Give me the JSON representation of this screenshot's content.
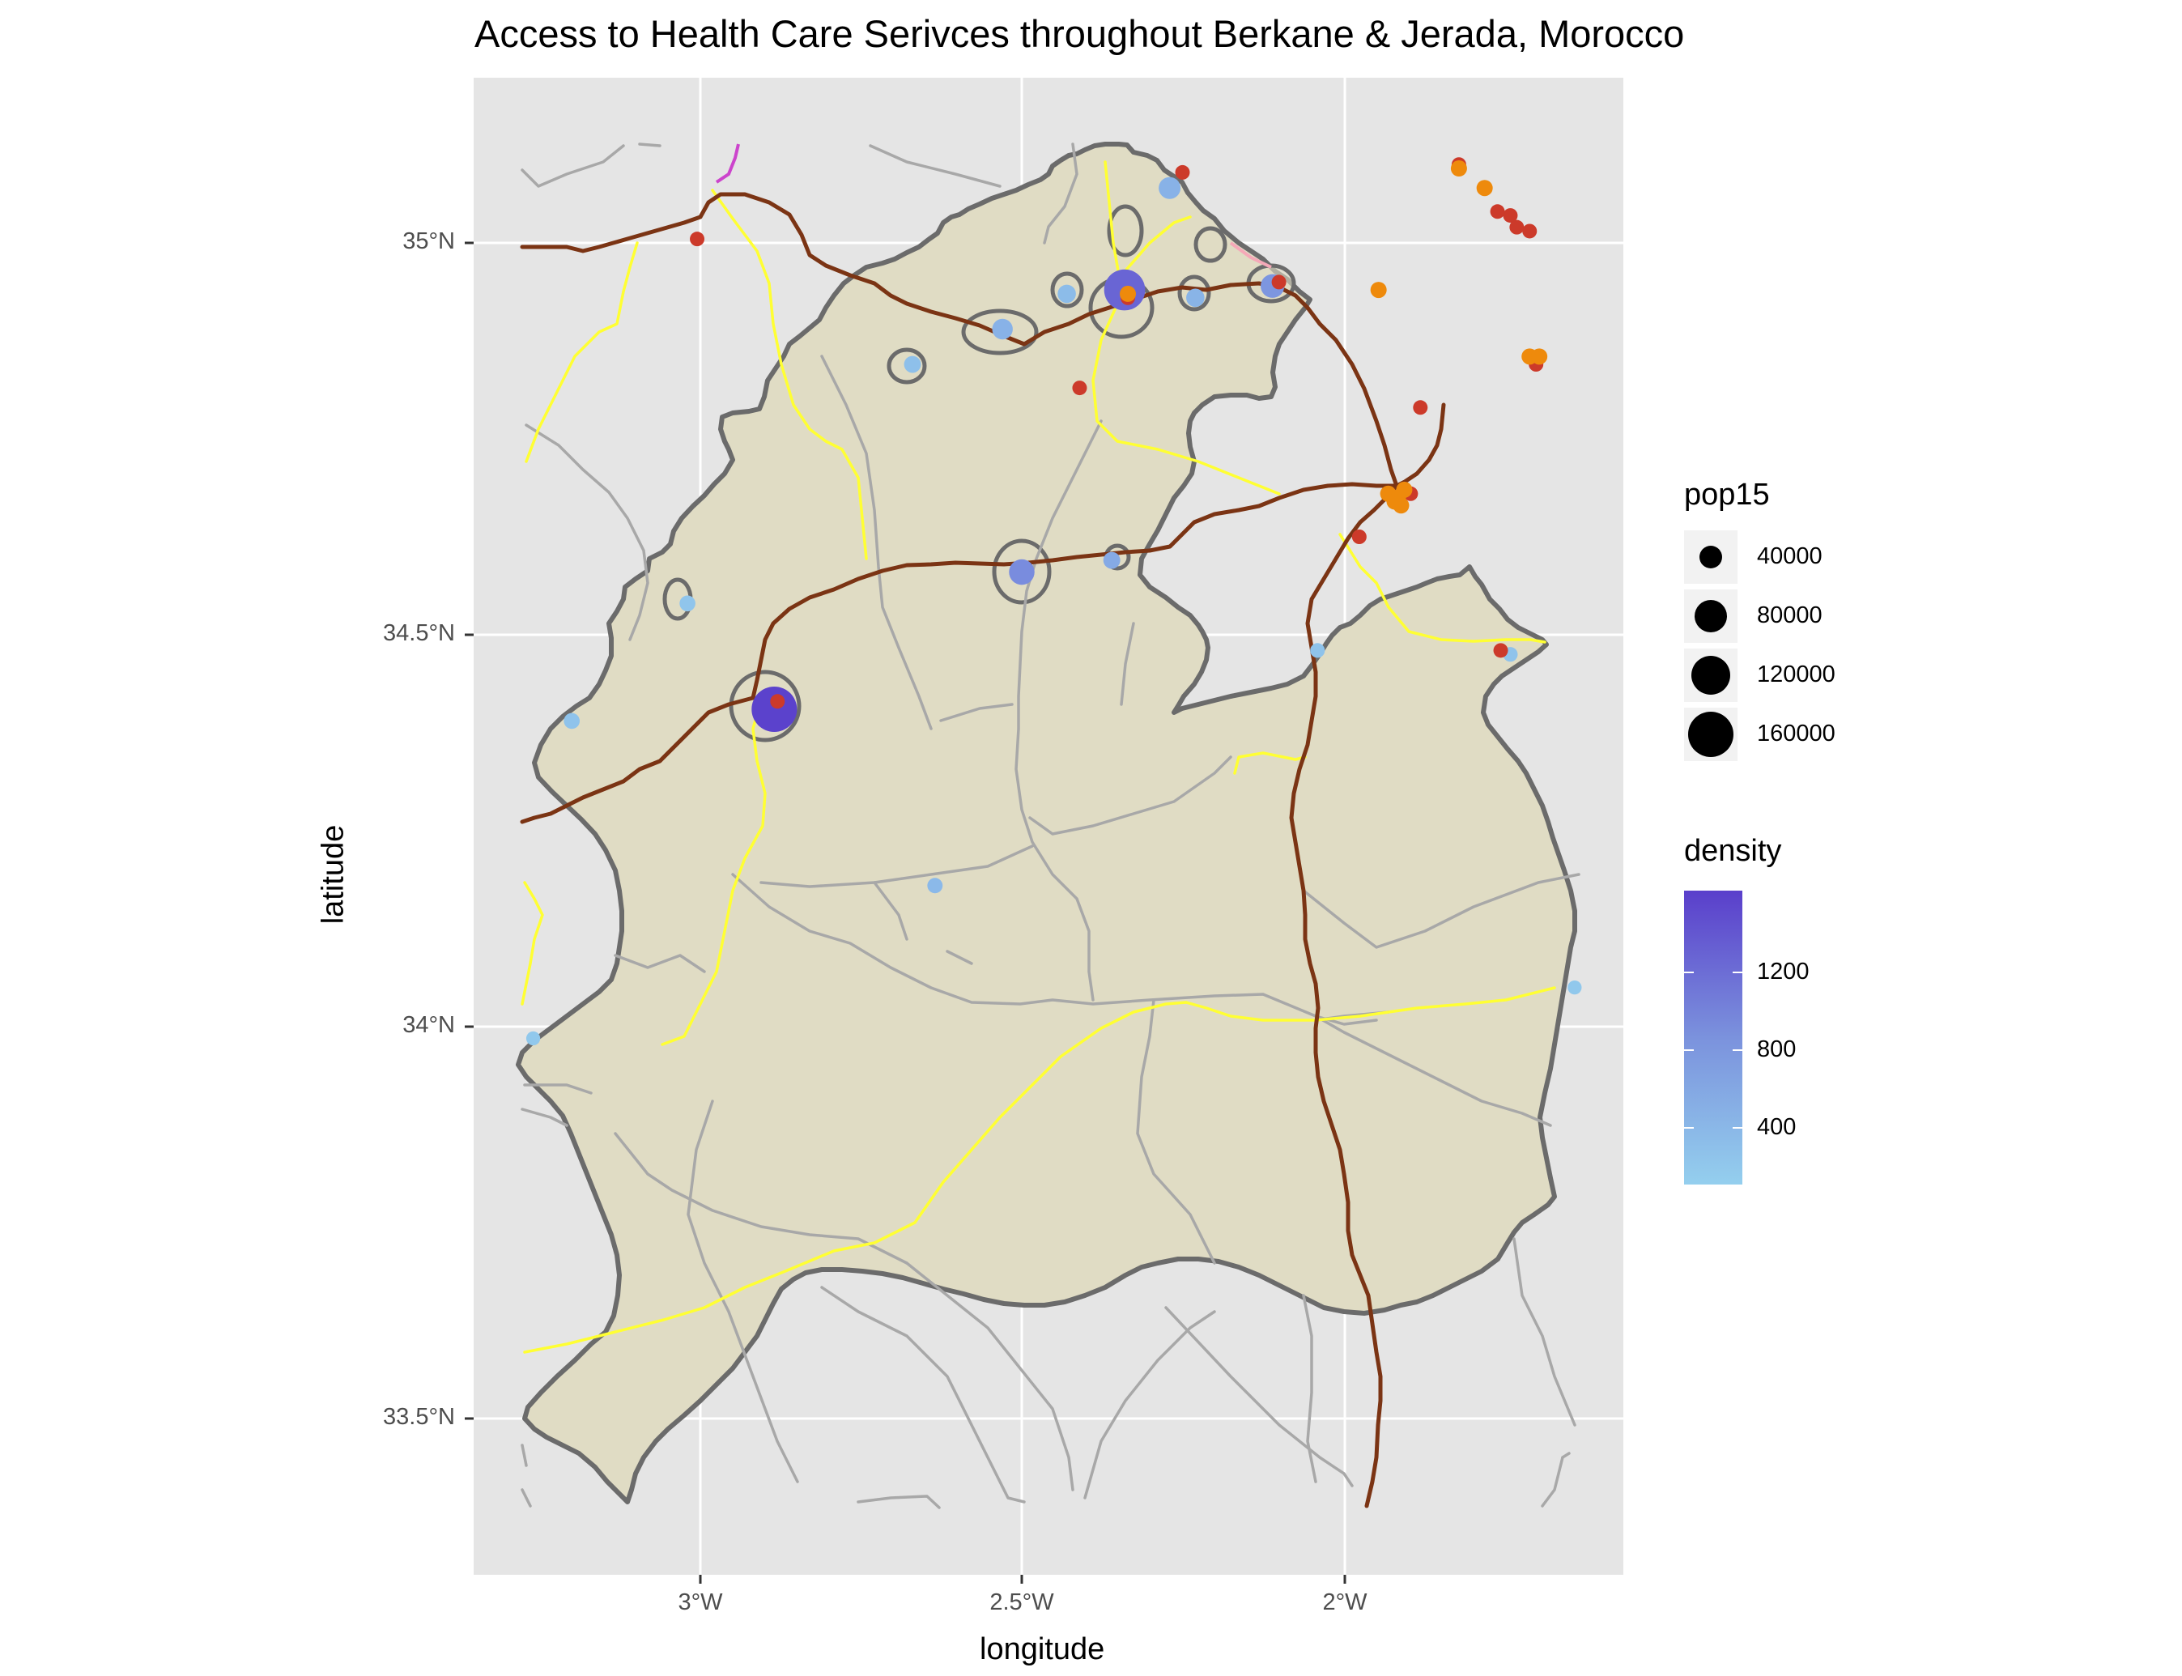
{
  "map": {
    "title": "Access to Health Care Serivces throughout Berkane & Jerada, Morocco",
    "xlabel": "longitude",
    "ylabel": "latitude",
    "x_ticks": [
      "3°W",
      "2.5°W",
      "2°W"
    ],
    "y_ticks": [
      "35°N",
      "34.5°N",
      "34°N",
      "33.5°N"
    ],
    "x_tick_values": [
      -3.0,
      -2.5,
      -2.0
    ],
    "y_tick_values": [
      35.0,
      34.5,
      34.0,
      33.5
    ],
    "lon_range": [
      -3.33,
      -1.56
    ],
    "lat_range": [
      33.3,
      35.23
    ],
    "colors": {
      "panel_bg": "#e5e5e5",
      "grid": "#ffffff",
      "region_fill": "#e0dcc4",
      "region_outline": "#6b6b6b",
      "primary_road": "#7b3414",
      "secondary_road": "#ffff33",
      "minor_road": "#a8a8a8",
      "facility_red": "#cc3a2a",
      "facility_orange": "#ee8a0c",
      "density_low": "#94cfee",
      "density_high": "#5a3fcb"
    }
  },
  "legend_size": {
    "title": "pop15",
    "entries": [
      {
        "label": "40000",
        "value": 40000
      },
      {
        "label": "80000",
        "value": 80000
      },
      {
        "label": "120000",
        "value": 120000
      },
      {
        "label": "160000",
        "value": 160000
      }
    ]
  },
  "legend_density": {
    "title": "density",
    "ticks": [
      {
        "label": "1200",
        "value": 1200
      },
      {
        "label": "800",
        "value": 800
      },
      {
        "label": "400",
        "value": 400
      }
    ],
    "range": [
      130,
      1580
    ]
  },
  "towns": [
    {
      "lon": -2.885,
      "lat": 34.405,
      "pop15": 160000,
      "density": 1550
    },
    {
      "lon": -2.34,
      "lat": 34.94,
      "pop15": 125000,
      "density": 1200
    },
    {
      "lon": -2.5,
      "lat": 34.58,
      "pop15": 35000,
      "density": 800
    },
    {
      "lon": -2.11,
      "lat": 34.945,
      "pop15": 28000,
      "density": 700
    },
    {
      "lon": -2.27,
      "lat": 35.07,
      "pop15": 22000,
      "density": 420
    },
    {
      "lon": -2.53,
      "lat": 34.89,
      "pop15": 18000,
      "density": 420
    },
    {
      "lon": -2.43,
      "lat": 34.935,
      "pop15": 12000,
      "density": 320
    },
    {
      "lon": -2.23,
      "lat": 34.93,
      "pop15": 12000,
      "density": 400
    },
    {
      "lon": -2.67,
      "lat": 34.845,
      "pop15": 9000,
      "density": 280
    },
    {
      "lon": -2.36,
      "lat": 34.595,
      "pop15": 9000,
      "density": 500
    },
    {
      "lon": -3.02,
      "lat": 34.54,
      "pop15": 7000,
      "density": 230
    },
    {
      "lon": -3.2,
      "lat": 34.39,
      "pop15": 7000,
      "density": 250
    },
    {
      "lon": -2.635,
      "lat": 34.18,
      "pop15": 6000,
      "density": 350
    },
    {
      "lon": -2.04,
      "lat": 34.48,
      "pop15": 5000,
      "density": 250
    },
    {
      "lon": -1.74,
      "lat": 34.475,
      "pop15": 5000,
      "density": 250
    },
    {
      "lon": -1.64,
      "lat": 34.05,
      "pop15": 4000,
      "density": 200
    },
    {
      "lon": -3.26,
      "lat": 33.985,
      "pop15": 4000,
      "density": 200
    }
  ],
  "facilities_red": [
    {
      "lon": -3.005,
      "lat": 35.005
    },
    {
      "lon": -2.25,
      "lat": 35.09
    },
    {
      "lon": -2.1,
      "lat": 34.95
    },
    {
      "lon": -2.41,
      "lat": 34.815
    },
    {
      "lon": -1.88,
      "lat": 34.79
    },
    {
      "lon": -1.895,
      "lat": 34.68
    },
    {
      "lon": -1.975,
      "lat": 34.625
    },
    {
      "lon": -1.755,
      "lat": 34.48
    },
    {
      "lon": -1.82,
      "lat": 35.1
    },
    {
      "lon": -1.76,
      "lat": 35.04
    },
    {
      "lon": -1.74,
      "lat": 35.035
    },
    {
      "lon": -1.73,
      "lat": 35.02
    },
    {
      "lon": -1.71,
      "lat": 35.015
    },
    {
      "lon": -1.7,
      "lat": 34.845
    },
    {
      "lon": -2.335,
      "lat": 34.93
    },
    {
      "lon": -2.88,
      "lat": 34.415
    }
  ],
  "facilities_orange": [
    {
      "lon": -1.82,
      "lat": 35.095
    },
    {
      "lon": -1.78,
      "lat": 35.07
    },
    {
      "lon": -1.945,
      "lat": 34.94
    },
    {
      "lon": -1.71,
      "lat": 34.855
    },
    {
      "lon": -1.695,
      "lat": 34.855
    },
    {
      "lon": -1.93,
      "lat": 34.68
    },
    {
      "lon": -1.915,
      "lat": 34.675
    },
    {
      "lon": -1.905,
      "lat": 34.685
    },
    {
      "lon": -1.91,
      "lat": 34.665
    },
    {
      "lon": -1.92,
      "lat": 34.67
    },
    {
      "lon": -2.335,
      "lat": 34.935
    }
  ]
}
